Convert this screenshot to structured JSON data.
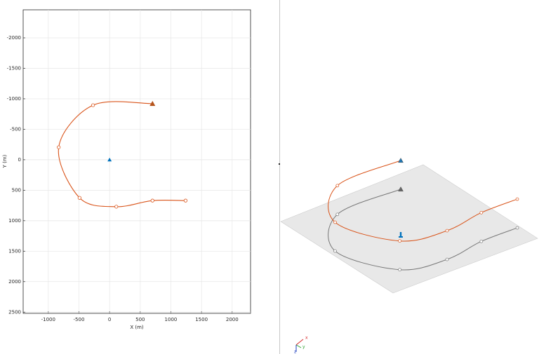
{
  "chart_data": {
    "type": "line",
    "x_label": "X (m)",
    "y_label": "Y (m)",
    "xlim": [
      -1410,
      2300
    ],
    "ylim": [
      -2460,
      2520
    ],
    "y_reversed": true,
    "grid": true,
    "xticks": [
      -1000,
      -500,
      0,
      500,
      1000,
      1500,
      2000
    ],
    "yticks": [
      -2000,
      -1500,
      -1000,
      -500,
      0,
      500,
      1000,
      1500,
      2000,
      2500
    ],
    "series": [
      {
        "color": "#d95319",
        "x": [
          700,
          -270,
          -830,
          -490,
          110,
          700,
          1240
        ],
        "y": [
          -920,
          -895,
          -205,
          625,
          770,
          670,
          670
        ]
      }
    ],
    "reference": {
      "x": 0,
      "y": 0,
      "color": "#0072bd"
    }
  },
  "view3d": {
    "axis_labels": [
      "x",
      "y",
      "z"
    ]
  }
}
